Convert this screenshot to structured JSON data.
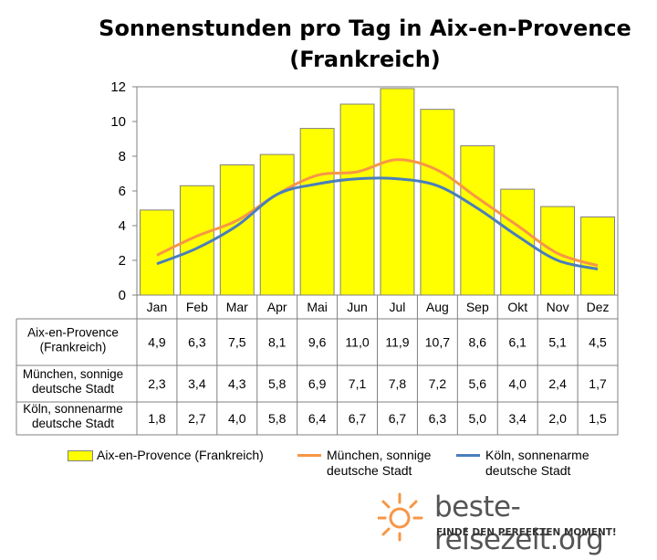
{
  "chart_data": {
    "type": "bar",
    "title": "Sonnenstunden pro Tag in Aix-en-Provence (Frankreich)",
    "xlabel": "",
    "ylabel": "",
    "ylim": [
      0,
      12
    ],
    "yticks": [
      0,
      2,
      4,
      6,
      8,
      10,
      12
    ],
    "grid": false,
    "legend": "bottom",
    "categories": [
      "Jan",
      "Feb",
      "Mar",
      "Apr",
      "Mai",
      "Jun",
      "Jul",
      "Aug",
      "Sep",
      "Okt",
      "Nov",
      "Dez"
    ],
    "series": [
      {
        "name": "Aix-en-Provence (Frankreich)",
        "type": "bar",
        "color": "#ffff00",
        "row_label": [
          "Aix-en-Provence",
          "(Frankreich)"
        ],
        "values": [
          4.9,
          6.3,
          7.5,
          8.1,
          9.6,
          11.0,
          11.9,
          10.7,
          8.6,
          6.1,
          5.1,
          4.5
        ],
        "labels": [
          "4,9",
          "6,3",
          "7,5",
          "8,1",
          "9,6",
          "11,0",
          "11,9",
          "10,7",
          "8,6",
          "6,1",
          "5,1",
          "4,5"
        ]
      },
      {
        "name": "München, sonnige deutsche Stadt",
        "type": "line",
        "color": "#f79646",
        "row_label": [
          "München, sonnige",
          "deutsche Stadt"
        ],
        "values": [
          2.3,
          3.4,
          4.3,
          5.8,
          6.9,
          7.1,
          7.8,
          7.2,
          5.6,
          4.0,
          2.4,
          1.7
        ],
        "labels": [
          "2,3",
          "3,4",
          "4,3",
          "5,8",
          "6,9",
          "7,1",
          "7,8",
          "7,2",
          "5,6",
          "4,0",
          "2,4",
          "1,7"
        ]
      },
      {
        "name": "Köln, sonnenarme deutsche Stadt",
        "type": "line",
        "color": "#4a7ebb",
        "row_label": [
          "Köln, sonnenarme",
          "deutsche Stadt"
        ],
        "values": [
          1.8,
          2.7,
          4.0,
          5.8,
          6.4,
          6.7,
          6.7,
          6.3,
          5.0,
          3.4,
          2.0,
          1.5
        ],
        "labels": [
          "1,8",
          "2,7",
          "4,0",
          "5,8",
          "6,4",
          "6,7",
          "6,7",
          "6,3",
          "5,0",
          "3,4",
          "2,0",
          "1,5"
        ]
      }
    ]
  },
  "legend": {
    "aix": "Aix-en-Provence (Frankreich)",
    "muenchen_line1": "München, sonnige",
    "muenchen_line2": "deutsche Stadt",
    "koeln_line1": "Köln, sonnenarme",
    "koeln_line2": "deutsche Stadt"
  },
  "logo": {
    "text": "beste-reisezeit.org",
    "slogan": "FINDE DEN PERFEKTEN MOMENT!",
    "sun_color": "#f79646"
  }
}
